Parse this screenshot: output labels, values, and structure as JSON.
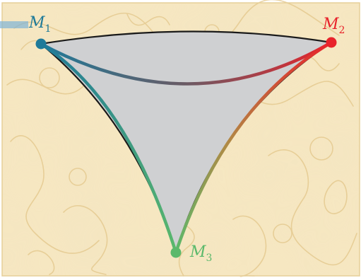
{
  "vertices": [
    {
      "id": "m1",
      "label": "M",
      "subscript": "1",
      "color": "#1f7a99"
    },
    {
      "id": "m2",
      "label": "M",
      "subscript": "2",
      "color": "#e8232b"
    },
    {
      "id": "m3",
      "label": "M",
      "subscript": "3",
      "color": "#5bb96b"
    }
  ],
  "colors": {
    "background_paper": "#f6e7c1",
    "background_texture": "#e3c68a",
    "fill": "#cfd0d2",
    "outline": "#1a1a1a",
    "frame_bar": "#7fb3d5"
  }
}
